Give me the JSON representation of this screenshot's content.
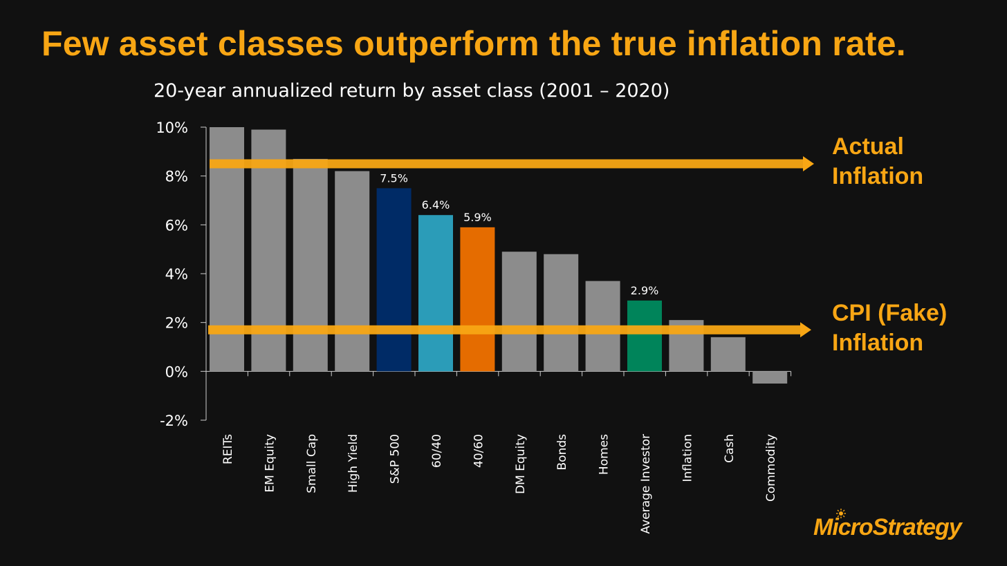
{
  "slide_title": "Few asset classes outperform the true inflation rate.",
  "annotations": {
    "actual_line1": "Actual",
    "actual_line2": "Inflation",
    "cpi_line1": "CPI (Fake)",
    "cpi_line2": "Inflation"
  },
  "logo": "MicroStrategy",
  "colors": {
    "title": "#f8a614",
    "arrow": "#f8a614",
    "bar_default": "#8c8c8c",
    "bar_sp500": "#002b66",
    "bar_6040": "#2b9cb8",
    "bar_4060": "#e56c00",
    "bar_avg_investor": "#00845a"
  },
  "chart_data": {
    "type": "bar",
    "title": "20-year annualized return by asset class (2001 – 2020)",
    "categories": [
      "REITs",
      "EM Equity",
      "Small Cap",
      "High Yield",
      "S&P 500",
      "60/40",
      "40/60",
      "DM Equity",
      "Bonds",
      "Homes",
      "Average Investor",
      "Inflation",
      "Cash",
      "Commodity"
    ],
    "values": [
      10.0,
      9.9,
      8.7,
      8.2,
      7.5,
      6.4,
      5.9,
      4.9,
      4.8,
      3.7,
      2.9,
      2.1,
      1.4,
      -0.5
    ],
    "bar_colors": [
      "#8c8c8c",
      "#8c8c8c",
      "#8c8c8c",
      "#8c8c8c",
      "#002b66",
      "#2b9cb8",
      "#e56c00",
      "#8c8c8c",
      "#8c8c8c",
      "#8c8c8c",
      "#00845a",
      "#8c8c8c",
      "#8c8c8c",
      "#8c8c8c"
    ],
    "data_labels": [
      "",
      "",
      "",
      "",
      "7.5%",
      "6.4%",
      "5.9%",
      "",
      "",
      "",
      "2.9%",
      "",
      "",
      ""
    ],
    "yticks": [
      "10%",
      "8%",
      "6%",
      "4%",
      "2%",
      "0%",
      "-2%"
    ],
    "ytick_values": [
      10,
      8,
      6,
      4,
      2,
      0,
      -2
    ],
    "ylim": [
      -2,
      10
    ],
    "reference_lines": [
      {
        "value": 8.5
      },
      {
        "value": 1.7
      }
    ],
    "grid": false,
    "xlabel": "",
    "ylabel": ""
  }
}
